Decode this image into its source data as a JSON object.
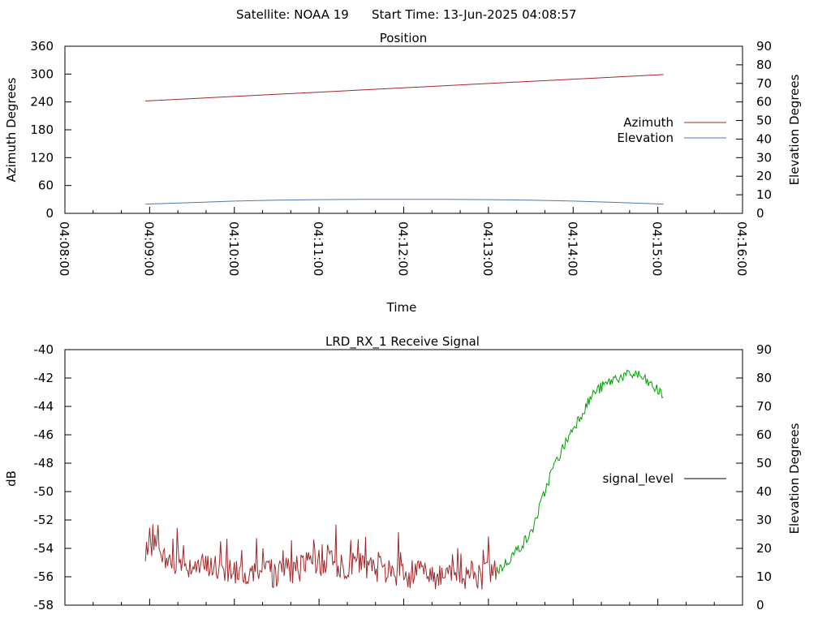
{
  "header": {
    "satellite_label": "Satellite: NOAA 19",
    "start_time_label": "Start Time: 13-Jun-2025 04:08:57"
  },
  "chart_data": [
    {
      "type": "line",
      "title": "Position",
      "xlabel": "Time",
      "ylabel_left": "Azimuth Degrees",
      "ylabel_right": "Elevation Degrees",
      "x_range_seconds_label": [
        "04:08:00",
        "04:16:00"
      ],
      "x_ticks": [
        "04:08:00",
        "04:09:00",
        "04:10:00",
        "04:11:00",
        "04:12:00",
        "04:13:00",
        "04:14:00",
        "04:15:00",
        "04:16:00"
      ],
      "ylim_left": [
        0,
        360
      ],
      "yticks_left": [
        "0",
        "60",
        "120",
        "180",
        "240",
        "300",
        "360"
      ],
      "ylim_right": [
        0,
        90
      ],
      "yticks_right": [
        "0",
        "10",
        "20",
        "30",
        "40",
        "50",
        "60",
        "70",
        "80",
        "90"
      ],
      "legend_position": "right",
      "series": [
        {
          "name": "Azimuth",
          "axis": "left",
          "color": "#a0282a",
          "x": [
            "04:08:57",
            "04:15:04"
          ],
          "y": [
            242,
            299
          ]
        },
        {
          "name": "Elevation",
          "axis": "right",
          "color": "#4a7ab0",
          "x": [
            "04:08:57",
            "04:09:30",
            "04:10:00",
            "04:10:30",
            "04:11:00",
            "04:11:30",
            "04:12:00",
            "04:12:30",
            "04:13:00",
            "04:13:30",
            "04:14:00",
            "04:14:30",
            "04:15:04"
          ],
          "y": [
            5.0,
            5.8,
            6.6,
            7.1,
            7.4,
            7.5,
            7.5,
            7.5,
            7.4,
            7.1,
            6.6,
            5.9,
            5.0
          ]
        }
      ]
    },
    {
      "type": "line",
      "title": "LRD_RX_1 Receive Signal",
      "ylabel_left": "dB",
      "ylabel_right": "Elevation Degrees",
      "ylim_left": [
        -58,
        -40
      ],
      "yticks_left": [
        "-58",
        "-56",
        "-54",
        "-52",
        "-50",
        "-48",
        "-46",
        "-44",
        "-42",
        "-40"
      ],
      "ylim_right": [
        0,
        90
      ],
      "yticks_right": [
        "0",
        "10",
        "20",
        "30",
        "40",
        "50",
        "60",
        "70",
        "80",
        "90"
      ],
      "legend_position": "right",
      "series": [
        {
          "name": "signal_level",
          "color": "#000000",
          "segments": [
            {
              "color": "#a0282a",
              "x_range": [
                "04:08:57",
                "04:13:06"
              ],
              "y_range": [
                -57,
                -52.3
              ]
            },
            {
              "color": "#00a000",
              "x_range": [
                "04:13:06",
                "04:15:04"
              ],
              "y_range": [
                -55.5,
                -41.2
              ]
            }
          ],
          "x": [
            "04:08:57",
            "04:09:30",
            "04:10:00",
            "04:10:30",
            "04:11:00",
            "04:11:30",
            "04:12:00",
            "04:12:30",
            "04:13:00",
            "04:13:10",
            "04:13:30",
            "04:13:45",
            "04:14:00",
            "04:14:15",
            "04:14:30",
            "04:14:45",
            "04:15:04"
          ],
          "y": [
            -54.5,
            -55.2,
            -55.5,
            -55.8,
            -55.0,
            -55.3,
            -55.8,
            -55.9,
            -55.9,
            -55.3,
            -53.0,
            -48.5,
            -45.5,
            -43.0,
            -42.0,
            -41.7,
            -43.2
          ]
        }
      ]
    }
  ]
}
